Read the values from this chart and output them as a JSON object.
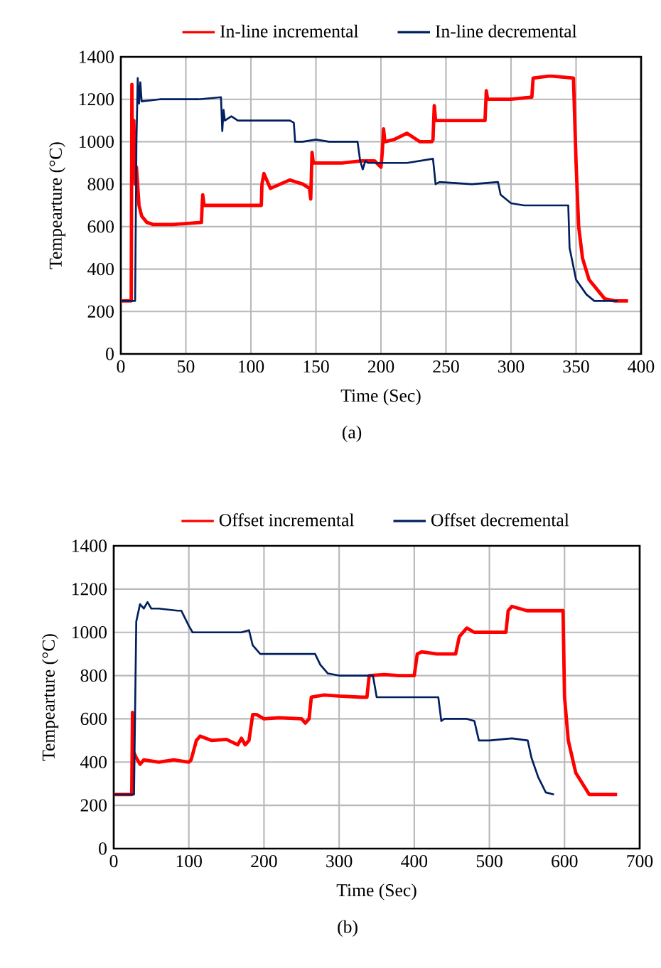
{
  "chart_data": [
    {
      "type": "line",
      "xlabel": "Time (Sec)",
      "ylabel": "Tempearture (°C)",
      "annotations": [
        "(a)"
      ],
      "xlim": [
        0,
        400
      ],
      "ylim": [
        0,
        1400
      ],
      "xticks": [
        0,
        50,
        100,
        150,
        200,
        250,
        300,
        350,
        400
      ],
      "yticks": [
        0,
        200,
        400,
        600,
        800,
        1000,
        1200,
        1400
      ],
      "grid": true,
      "legend": "top",
      "series": [
        {
          "name": "In-line incremental",
          "color": "#ff0000",
          "x": [
            0,
            8,
            8.5,
            9,
            10,
            11,
            12,
            14,
            16,
            20,
            25,
            40,
            62,
            62.5,
            63,
            64,
            80,
            100,
            108,
            108.5,
            110,
            115,
            130,
            140,
            145,
            146,
            147,
            148,
            155,
            170,
            185,
            195,
            200,
            201,
            202,
            203,
            210,
            220,
            230,
            239,
            240,
            241,
            242,
            260,
            280,
            281,
            282,
            286,
            300,
            316,
            317,
            330,
            348,
            350,
            352,
            355,
            360,
            372,
            380,
            390
          ],
          "values": [
            250,
            250,
            1270,
            900,
            1100,
            800,
            880,
            700,
            650,
            620,
            610,
            610,
            620,
            700,
            750,
            700,
            700,
            700,
            700,
            800,
            850,
            780,
            820,
            800,
            780,
            730,
            950,
            900,
            900,
            900,
            910,
            910,
            880,
            950,
            1060,
            1000,
            1010,
            1040,
            1000,
            1000,
            1010,
            1170,
            1100,
            1100,
            1100,
            1240,
            1200,
            1200,
            1200,
            1210,
            1300,
            1310,
            1300,
            900,
            600,
            450,
            350,
            260,
            250,
            250
          ]
        },
        {
          "name": "In-line decremental",
          "color": "#002060",
          "x": [
            0,
            11,
            12,
            13,
            14,
            15,
            16,
            30,
            60,
            77,
            78,
            79,
            80,
            85,
            90,
            130,
            133,
            134,
            140,
            150,
            160,
            182,
            184,
            186,
            188,
            190,
            220,
            240,
            242,
            245,
            270,
            290,
            292,
            300,
            310,
            340,
            344,
            345,
            350,
            358,
            364,
            382
          ],
          "values": [
            250,
            250,
            1000,
            1300,
            1180,
            1280,
            1190,
            1200,
            1200,
            1210,
            1050,
            1150,
            1100,
            1120,
            1100,
            1100,
            1090,
            1000,
            1000,
            1010,
            1000,
            1000,
            910,
            870,
            910,
            900,
            900,
            920,
            800,
            810,
            800,
            810,
            750,
            710,
            700,
            700,
            700,
            500,
            350,
            280,
            250,
            250
          ]
        }
      ]
    },
    {
      "type": "line",
      "xlabel": "Time (Sec)",
      "ylabel": "Tempearture (°C)",
      "annotations": [
        "(b)"
      ],
      "xlim": [
        0,
        700
      ],
      "ylim": [
        0,
        1400
      ],
      "xticks": [
        0,
        100,
        200,
        300,
        400,
        500,
        600,
        700
      ],
      "yticks": [
        0,
        200,
        400,
        600,
        800,
        1000,
        1200,
        1400
      ],
      "grid": true,
      "legend": "top",
      "series": [
        {
          "name": "Offset incremental",
          "color": "#ff0000",
          "x": [
            0,
            24,
            25,
            26,
            30,
            35,
            40,
            60,
            80,
            100,
            103,
            110,
            115,
            130,
            150,
            165,
            170,
            175,
            180,
            185,
            190,
            200,
            220,
            250,
            255,
            260,
            263,
            280,
            300,
            330,
            337,
            340,
            360,
            380,
            400,
            404,
            410,
            430,
            455,
            460,
            470,
            480,
            510,
            522,
            525,
            530,
            550,
            570,
            598,
            600,
            605,
            615,
            633,
            670
          ],
          "values": [
            250,
            250,
            630,
            450,
            420,
            390,
            410,
            400,
            410,
            400,
            410,
            500,
            520,
            500,
            505,
            480,
            510,
            480,
            500,
            620,
            620,
            600,
            605,
            600,
            580,
            600,
            700,
            710,
            705,
            700,
            700,
            800,
            805,
            800,
            800,
            900,
            910,
            900,
            900,
            980,
            1020,
            1000,
            1000,
            1000,
            1100,
            1120,
            1100,
            1100,
            1100,
            700,
            500,
            350,
            250,
            250
          ]
        },
        {
          "name": "Offset decremental",
          "color": "#002060",
          "x": [
            0,
            27,
            30,
            35,
            40,
            45,
            50,
            60,
            85,
            90,
            100,
            105,
            130,
            170,
            180,
            185,
            195,
            220,
            268,
            275,
            285,
            300,
            345,
            350,
            370,
            400,
            432,
            436,
            440,
            470,
            480,
            486,
            500,
            530,
            551,
            556,
            565,
            575,
            586
          ],
          "values": [
            250,
            250,
            1050,
            1130,
            1110,
            1140,
            1110,
            1110,
            1100,
            1100,
            1030,
            1000,
            1000,
            1000,
            1010,
            940,
            900,
            900,
            900,
            850,
            810,
            800,
            800,
            700,
            700,
            700,
            700,
            590,
            600,
            600,
            590,
            500,
            500,
            510,
            500,
            420,
            330,
            260,
            250
          ]
        }
      ]
    }
  ]
}
